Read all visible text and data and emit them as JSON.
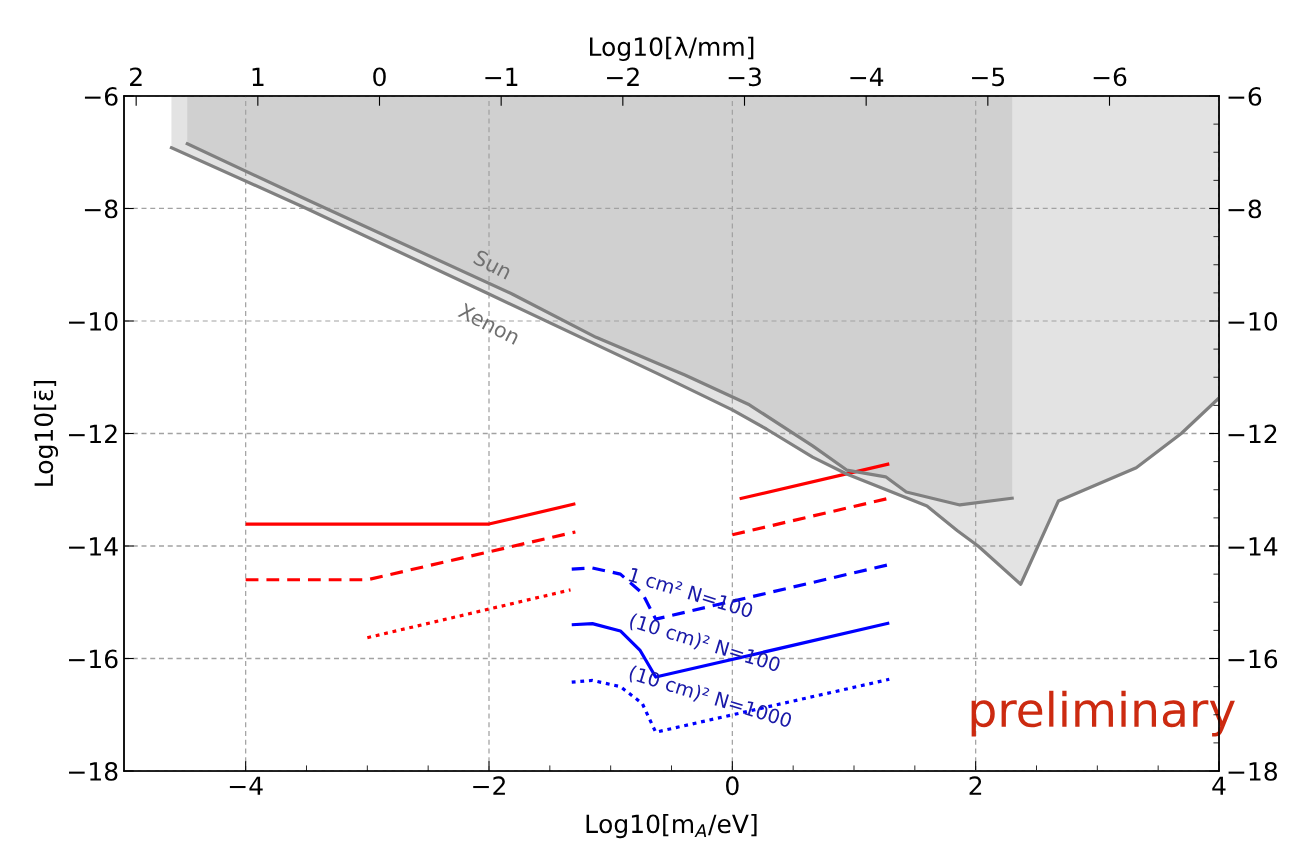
{
  "chart_data": {
    "type": "line",
    "xlabel": "Log10[m$_{A}$/eV]",
    "ylabel": "Log10[ε̄]",
    "x2label": "Log10[λ/mm]",
    "xlim": [
      -5,
      4
    ],
    "xticks": [
      -4,
      -2,
      0,
      2,
      4
    ],
    "ylim": [
      -18,
      -6
    ],
    "yticks": [
      -18,
      -16,
      -14,
      -12,
      -10,
      -8,
      -6
    ],
    "y2lim": [
      -18,
      -6
    ],
    "y2ticks": [
      -18,
      -16,
      -14,
      -12,
      -10,
      -8,
      -6
    ],
    "x2lim": [
      2.1,
      -6.9
    ],
    "x2ticks": [
      2,
      1,
      0,
      -1,
      -2,
      -3,
      -4,
      -5,
      -6
    ],
    "grid": true,
    "series": [
      {
        "color": "#ff0000",
        "line_style": "solid",
        "x": [
          -4.0,
          -2.0,
          -1.29,
          -0.6,
          0.06,
          1.29
        ],
        "values": [
          -13.61,
          -13.61,
          -13.25,
          null,
          -13.16,
          -12.54
        ]
      },
      {
        "color": "#ff0000",
        "line_style": "dashed",
        "x": [
          -4.0,
          -3.0,
          -1.29,
          -0.6,
          0.0,
          1.29
        ],
        "values": [
          -14.6,
          -14.6,
          -13.75,
          null,
          -13.8,
          -13.15
        ]
      },
      {
        "color": "#ff0000",
        "line_style": "dotted",
        "x": [
          -3.0,
          -1.33
        ],
        "values": [
          -15.63,
          -14.78
        ]
      },
      {
        "color": "#0000ff",
        "line_style": "dashed",
        "x": [
          -1.32,
          -1.15,
          -0.92,
          -0.74,
          -0.63,
          1.29
        ],
        "values": [
          -14.41,
          -14.39,
          -14.5,
          -14.84,
          -15.3,
          -14.33
        ]
      },
      {
        "color": "#0000ff",
        "line_style": "solid",
        "x": [
          -1.32,
          -1.15,
          -0.92,
          -0.76,
          -0.63,
          1.29
        ],
        "values": [
          -15.4,
          -15.38,
          -15.51,
          -15.85,
          -16.33,
          -15.37
        ]
      },
      {
        "color": "#0000ff",
        "line_style": "dotted",
        "x": [
          -1.32,
          -1.15,
          -0.92,
          -0.74,
          -0.63,
          1.29
        ],
        "values": [
          -16.42,
          -16.39,
          -16.5,
          -16.8,
          -17.31,
          -16.37
        ]
      },
      {
        "type": "area",
        "color": "#e3e3e3",
        "x": [
          -4.61,
          -3.54,
          -2.0,
          -0.61,
          0.0,
          0.28,
          0.66,
          0.94,
          1.6,
          1.85,
          2.02,
          2.37,
          2.68,
          3.32,
          3.69,
          4.0
        ],
        "values": [
          -6.92,
          -7.96,
          -9.52,
          -10.94,
          -11.58,
          -11.92,
          -12.42,
          -12.72,
          -13.29,
          -13.73,
          -14.0,
          -14.68,
          -13.2,
          -12.61,
          -12.0,
          -11.37
        ]
      },
      {
        "type": "area",
        "color": "#d0d0d0",
        "x": [
          -4.48,
          -3.54,
          -1.81,
          -1.12,
          -0.39,
          0.14,
          0.66,
          0.94,
          1.26,
          1.43,
          1.87,
          2.3
        ],
        "values": [
          -6.85,
          -7.8,
          -9.52,
          -10.29,
          -10.96,
          -11.49,
          -12.22,
          -12.65,
          -12.77,
          -13.04,
          -13.27,
          -13.15
        ]
      }
    ],
    "annotations": [
      "Sun",
      "Xenon",
      "1 cm² N=100",
      "(10 cm)² N=100",
      "(10 cm)² N=1000",
      "preliminary"
    ]
  }
}
